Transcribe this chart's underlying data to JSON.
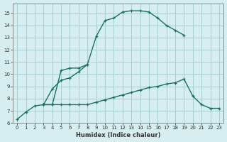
{
  "bg_color": "#d6eef0",
  "grid_color": "#a0c8cc",
  "line_color": "#1a7060",
  "line1_x": [
    0,
    1,
    2,
    3,
    4,
    5,
    6,
    7,
    8,
    9,
    10,
    11,
    12,
    13,
    14,
    15,
    16,
    17,
    18,
    19
  ],
  "line1_y": [
    6.3,
    6.9,
    7.4,
    7.5,
    8.8,
    9.5,
    9.7,
    10.2,
    10.8,
    13.1,
    14.4,
    14.6,
    15.1,
    15.2,
    15.2,
    15.1,
    14.6,
    14.0,
    13.6,
    13.2
  ],
  "line2_x": [
    3,
    4,
    5,
    6,
    7,
    8
  ],
  "line2_y": [
    7.5,
    7.5,
    10.3,
    10.5,
    10.5,
    10.8
  ],
  "line3_x": [
    3,
    4,
    5,
    6,
    7,
    8,
    9,
    10,
    11,
    12,
    13,
    14,
    15,
    16,
    17,
    18,
    19,
    20,
    21,
    22,
    23
  ],
  "line3_y": [
    7.5,
    7.5,
    7.5,
    7.5,
    7.5,
    7.5,
    7.7,
    7.9,
    8.1,
    8.3,
    8.5,
    8.7,
    8.9,
    9.0,
    9.2,
    9.3,
    9.6,
    8.2,
    7.5,
    7.2,
    7.2
  ],
  "xlabel": "Humidex (Indice chaleur)",
  "xlim": [
    -0.5,
    23.5
  ],
  "ylim": [
    6,
    15.8
  ],
  "yticks": [
    6,
    7,
    8,
    9,
    10,
    11,
    12,
    13,
    14,
    15
  ],
  "xticks": [
    0,
    1,
    2,
    3,
    4,
    5,
    6,
    7,
    8,
    9,
    10,
    11,
    12,
    13,
    14,
    15,
    16,
    17,
    18,
    19,
    20,
    21,
    22,
    23
  ]
}
